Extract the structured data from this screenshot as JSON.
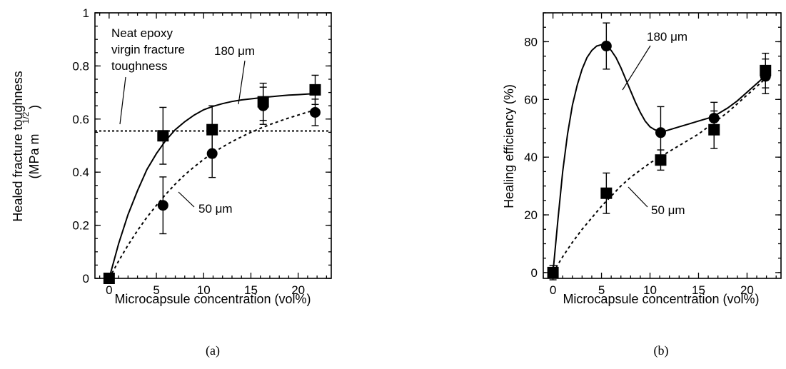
{
  "chart_data": [
    {
      "type": "scatter",
      "panel": "(a)",
      "title": "",
      "xlabel": "Microcapsule concentration (vol%)",
      "ylabel_line1": "Healed fracture toughness",
      "ylabel_line2": "(MPa m",
      "ylabel_exp": "1/2",
      "ylabel_close": ")",
      "xlim": [
        -1.5,
        23.5
      ],
      "ylim": [
        0,
        1
      ],
      "xticks": [
        0,
        5,
        10,
        15,
        20
      ],
      "xtick_labels": [
        "0",
        "5",
        "10",
        "15",
        "20"
      ],
      "yticks": [
        0,
        0.2,
        0.4,
        0.6,
        0.8,
        1
      ],
      "ytick_labels": [
        "0",
        "0.2",
        "0.4",
        "0.6",
        "0.8",
        "1"
      ],
      "reference_line": {
        "y": 0.555,
        "label_lines": [
          "Neat epoxy",
          "virgin fracture",
          "toughness"
        ]
      },
      "series": [
        {
          "name": "180 μm",
          "marker": "square",
          "points": [
            {
              "x": 0,
              "y": 0,
              "err": 0
            },
            {
              "x": 5.7,
              "y": 0.537,
              "err": 0.107
            },
            {
              "x": 10.9,
              "y": 0.56,
              "err": 0.09
            },
            {
              "x": 16.3,
              "y": 0.665,
              "err": 0.07
            },
            {
              "x": 21.8,
              "y": 0.71,
              "err": 0.055
            }
          ],
          "fit": [
            [
              0,
              0
            ],
            [
              1,
              0.13
            ],
            [
              2,
              0.24
            ],
            [
              3,
              0.33
            ],
            [
              4,
              0.41
            ],
            [
              5,
              0.47
            ],
            [
              6,
              0.52
            ],
            [
              7,
              0.56
            ],
            [
              8,
              0.59
            ],
            [
              9,
              0.615
            ],
            [
              10,
              0.635
            ],
            [
              11,
              0.648
            ],
            [
              12,
              0.658
            ],
            [
              13,
              0.666
            ],
            [
              14,
              0.672
            ],
            [
              15,
              0.676
            ],
            [
              16,
              0.68
            ],
            [
              17,
              0.684
            ],
            [
              18,
              0.687
            ],
            [
              19,
              0.69
            ],
            [
              20,
              0.692
            ],
            [
              21,
              0.694
            ],
            [
              22,
              0.696
            ]
          ]
        },
        {
          "name": "50 μm",
          "marker": "circle",
          "points": [
            {
              "x": 5.7,
              "y": 0.275,
              "err": 0.107
            },
            {
              "x": 10.9,
              "y": 0.47,
              "err": 0.09
            },
            {
              "x": 16.3,
              "y": 0.65,
              "err": 0.07
            },
            {
              "x": 21.8,
              "y": 0.625,
              "err": 0.05
            }
          ],
          "fit": [
            [
              0,
              0
            ],
            [
              1,
              0.065
            ],
            [
              2,
              0.125
            ],
            [
              3,
              0.18
            ],
            [
              4,
              0.23
            ],
            [
              5,
              0.275
            ],
            [
              6,
              0.317
            ],
            [
              7,
              0.355
            ],
            [
              8,
              0.39
            ],
            [
              9,
              0.42
            ],
            [
              10,
              0.448
            ],
            [
              11,
              0.473
            ],
            [
              12,
              0.495
            ],
            [
              13,
              0.515
            ],
            [
              14,
              0.533
            ],
            [
              15,
              0.55
            ],
            [
              16,
              0.565
            ],
            [
              17,
              0.579
            ],
            [
              18,
              0.592
            ],
            [
              19,
              0.604
            ],
            [
              20,
              0.615
            ],
            [
              21,
              0.626
            ],
            [
              22,
              0.636
            ]
          ]
        }
      ],
      "annotations": [
        {
          "text": "180 μm"
        },
        {
          "text": "50 μm"
        }
      ]
    },
    {
      "type": "scatter",
      "panel": "(b)",
      "title": "",
      "xlabel": "Microcapsule concentration (vol%)",
      "ylabel": "Healing efficiency (%)",
      "xlim": [
        -1,
        23.5
      ],
      "ylim": [
        -2,
        90
      ],
      "xticks": [
        0,
        5,
        10,
        15,
        20
      ],
      "xtick_labels": [
        "0",
        "5",
        "10",
        "15",
        "20"
      ],
      "yticks": [
        0,
        20,
        40,
        60,
        80
      ],
      "ytick_labels": [
        "0",
        "20",
        "40",
        "60",
        "80"
      ],
      "series": [
        {
          "name": "180 μm",
          "marker": "circle",
          "points": [
            {
              "x": 0,
              "y": 0,
              "err": 2.5
            },
            {
              "x": 5.5,
              "y": 78.5,
              "err": 8
            },
            {
              "x": 11.1,
              "y": 48.5,
              "err": 9
            },
            {
              "x": 16.6,
              "y": 53.5,
              "err": 5.5
            },
            {
              "x": 21.9,
              "y": 68,
              "err": 6
            }
          ],
          "fit": [
            [
              0,
              0
            ],
            [
              0.5,
              18
            ],
            [
              1,
              35
            ],
            [
              1.5,
              48
            ],
            [
              2,
              58
            ],
            [
              2.5,
              65
            ],
            [
              3,
              70.5
            ],
            [
              3.5,
              74.5
            ],
            [
              4,
              77
            ],
            [
              4.5,
              78.5
            ],
            [
              5,
              79
            ],
            [
              5.5,
              78.5
            ],
            [
              6,
              77
            ],
            [
              6.5,
              74.5
            ],
            [
              7,
              71
            ],
            [
              7.5,
              67
            ],
            [
              8,
              63
            ],
            [
              8.5,
              59
            ],
            [
              9,
              55.5
            ],
            [
              9.5,
              52.5
            ],
            [
              10,
              50.5
            ],
            [
              10.5,
              49.5
            ],
            [
              11,
              49
            ],
            [
              11.5,
              49
            ],
            [
              12,
              49.5
            ],
            [
              13,
              50.5
            ],
            [
              14,
              51.5
            ],
            [
              15,
              52.5
            ],
            [
              16,
              53.5
            ],
            [
              17,
              55
            ],
            [
              18,
              57
            ],
            [
              19,
              59.5
            ],
            [
              20,
              62.5
            ],
            [
              21,
              65.5
            ],
            [
              22,
              68.5
            ]
          ]
        },
        {
          "name": "50 μm",
          "marker": "square",
          "points": [
            {
              "x": 0,
              "y": 0,
              "err": 0
            },
            {
              "x": 5.5,
              "y": 27.5,
              "err": 7
            },
            {
              "x": 11.1,
              "y": 39,
              "err": 3.5
            },
            {
              "x": 16.6,
              "y": 49.5,
              "err": 6.5
            },
            {
              "x": 21.9,
              "y": 70,
              "err": 6
            }
          ],
          "fit": [
            [
              0,
              0
            ],
            [
              1,
              5.5
            ],
            [
              2,
              10.5
            ],
            [
              3,
              15
            ],
            [
              4,
              19
            ],
            [
              5,
              23
            ],
            [
              6,
              26.5
            ],
            [
              7,
              30
            ],
            [
              8,
              33
            ],
            [
              9,
              35.5
            ],
            [
              10,
              38
            ],
            [
              11,
              40
            ],
            [
              12,
              42
            ],
            [
              13,
              44
            ],
            [
              14,
              46
            ],
            [
              15,
              48
            ],
            [
              16,
              50.5
            ],
            [
              17,
              53
            ],
            [
              18,
              55.5
            ],
            [
              19,
              58.5
            ],
            [
              20,
              61.5
            ],
            [
              21,
              64.5
            ],
            [
              22,
              67.5
            ]
          ]
        }
      ],
      "annotations": [
        {
          "text": "180 μm"
        },
        {
          "text": "50 μm"
        }
      ]
    }
  ]
}
